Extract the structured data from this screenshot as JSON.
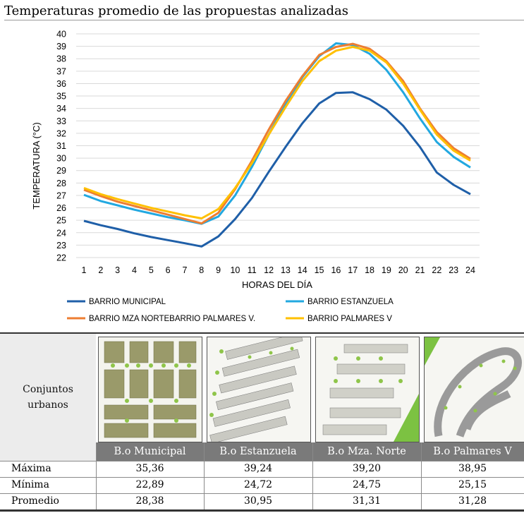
{
  "title": "Temperaturas promedio de las propuestas analizadas",
  "chart_data": {
    "type": "line",
    "title": "Temperaturas promedio de las propuestas analizadas",
    "xlabel": "HORAS DEL DÍA",
    "ylabel": "TEMPERATURA  (°C)",
    "x": [
      1,
      2,
      3,
      4,
      5,
      6,
      7,
      8,
      9,
      10,
      11,
      12,
      13,
      14,
      15,
      16,
      17,
      18,
      19,
      20,
      21,
      22,
      23,
      24
    ],
    "ylim": [
      22,
      40
    ],
    "yticks": [
      "22",
      "23",
      "24",
      "25",
      "26",
      "27",
      "28",
      "29",
      "30",
      "31",
      "32",
      "33",
      "34",
      "35",
      "36",
      "37",
      "38",
      "39",
      "40"
    ],
    "xticks": [
      "1",
      "2",
      "3",
      "4",
      "5",
      "6",
      "7",
      "8",
      "9",
      "10",
      "11",
      "12",
      "13",
      "14",
      "15",
      "16",
      "17",
      "18",
      "19",
      "20",
      "21",
      "22",
      "23",
      "24"
    ],
    "grid": true,
    "series": [
      {
        "name": "BARRIO MUNICIPAL",
        "color": "#1f5fa8",
        "values": [
          24.95,
          24.6,
          24.3,
          23.95,
          23.65,
          23.4,
          23.15,
          22.89,
          23.7,
          25.1,
          26.8,
          28.9,
          30.9,
          32.8,
          34.4,
          35.25,
          35.3,
          34.75,
          33.9,
          32.6,
          30.9,
          28.85,
          27.85,
          27.1
        ]
      },
      {
        "name": "BARRIO ESTANZUELA",
        "color": "#22a8e0",
        "values": [
          27.05,
          26.55,
          26.2,
          25.85,
          25.55,
          25.25,
          25.0,
          24.72,
          25.3,
          27.0,
          29.3,
          31.9,
          34.4,
          36.5,
          38.2,
          39.24,
          39.1,
          38.4,
          37.1,
          35.3,
          33.2,
          31.3,
          30.1,
          29.25
        ]
      },
      {
        "name": "BARRIO MZA NORTEBARRIO PALMARES V.",
        "color": "#ed7d31",
        "values": [
          27.45,
          26.95,
          26.5,
          26.15,
          25.8,
          25.45,
          25.1,
          24.75,
          25.6,
          27.5,
          29.8,
          32.3,
          34.6,
          36.6,
          38.3,
          38.95,
          39.2,
          38.8,
          37.8,
          36.2,
          34.0,
          32.1,
          30.8,
          29.95
        ]
      },
      {
        "name": "BARRIO PALMARES V",
        "color": "#ffc000",
        "values": [
          27.6,
          27.1,
          26.7,
          26.35,
          26.0,
          25.7,
          25.4,
          25.15,
          25.9,
          27.6,
          29.6,
          31.9,
          34.1,
          36.2,
          37.8,
          38.65,
          38.95,
          38.65,
          37.7,
          36.0,
          33.9,
          31.9,
          30.6,
          29.8
        ]
      }
    ]
  },
  "table": {
    "label": "Conjuntos urbanos",
    "columns": [
      "B.o Municipal",
      "B.o Estanzuela",
      "B.o Mza. Norte",
      "B.o Palmares V"
    ],
    "rows": [
      {
        "label": "Máxima",
        "values": [
          "35,36",
          "39,24",
          "39,20",
          "38,95"
        ]
      },
      {
        "label": "Mínima",
        "values": [
          "22,89",
          "24,72",
          "24,75",
          "25,15"
        ]
      },
      {
        "label": "Promedio",
        "values": [
          "28,38",
          "30,95",
          "31,31",
          "31,28"
        ]
      }
    ]
  }
}
